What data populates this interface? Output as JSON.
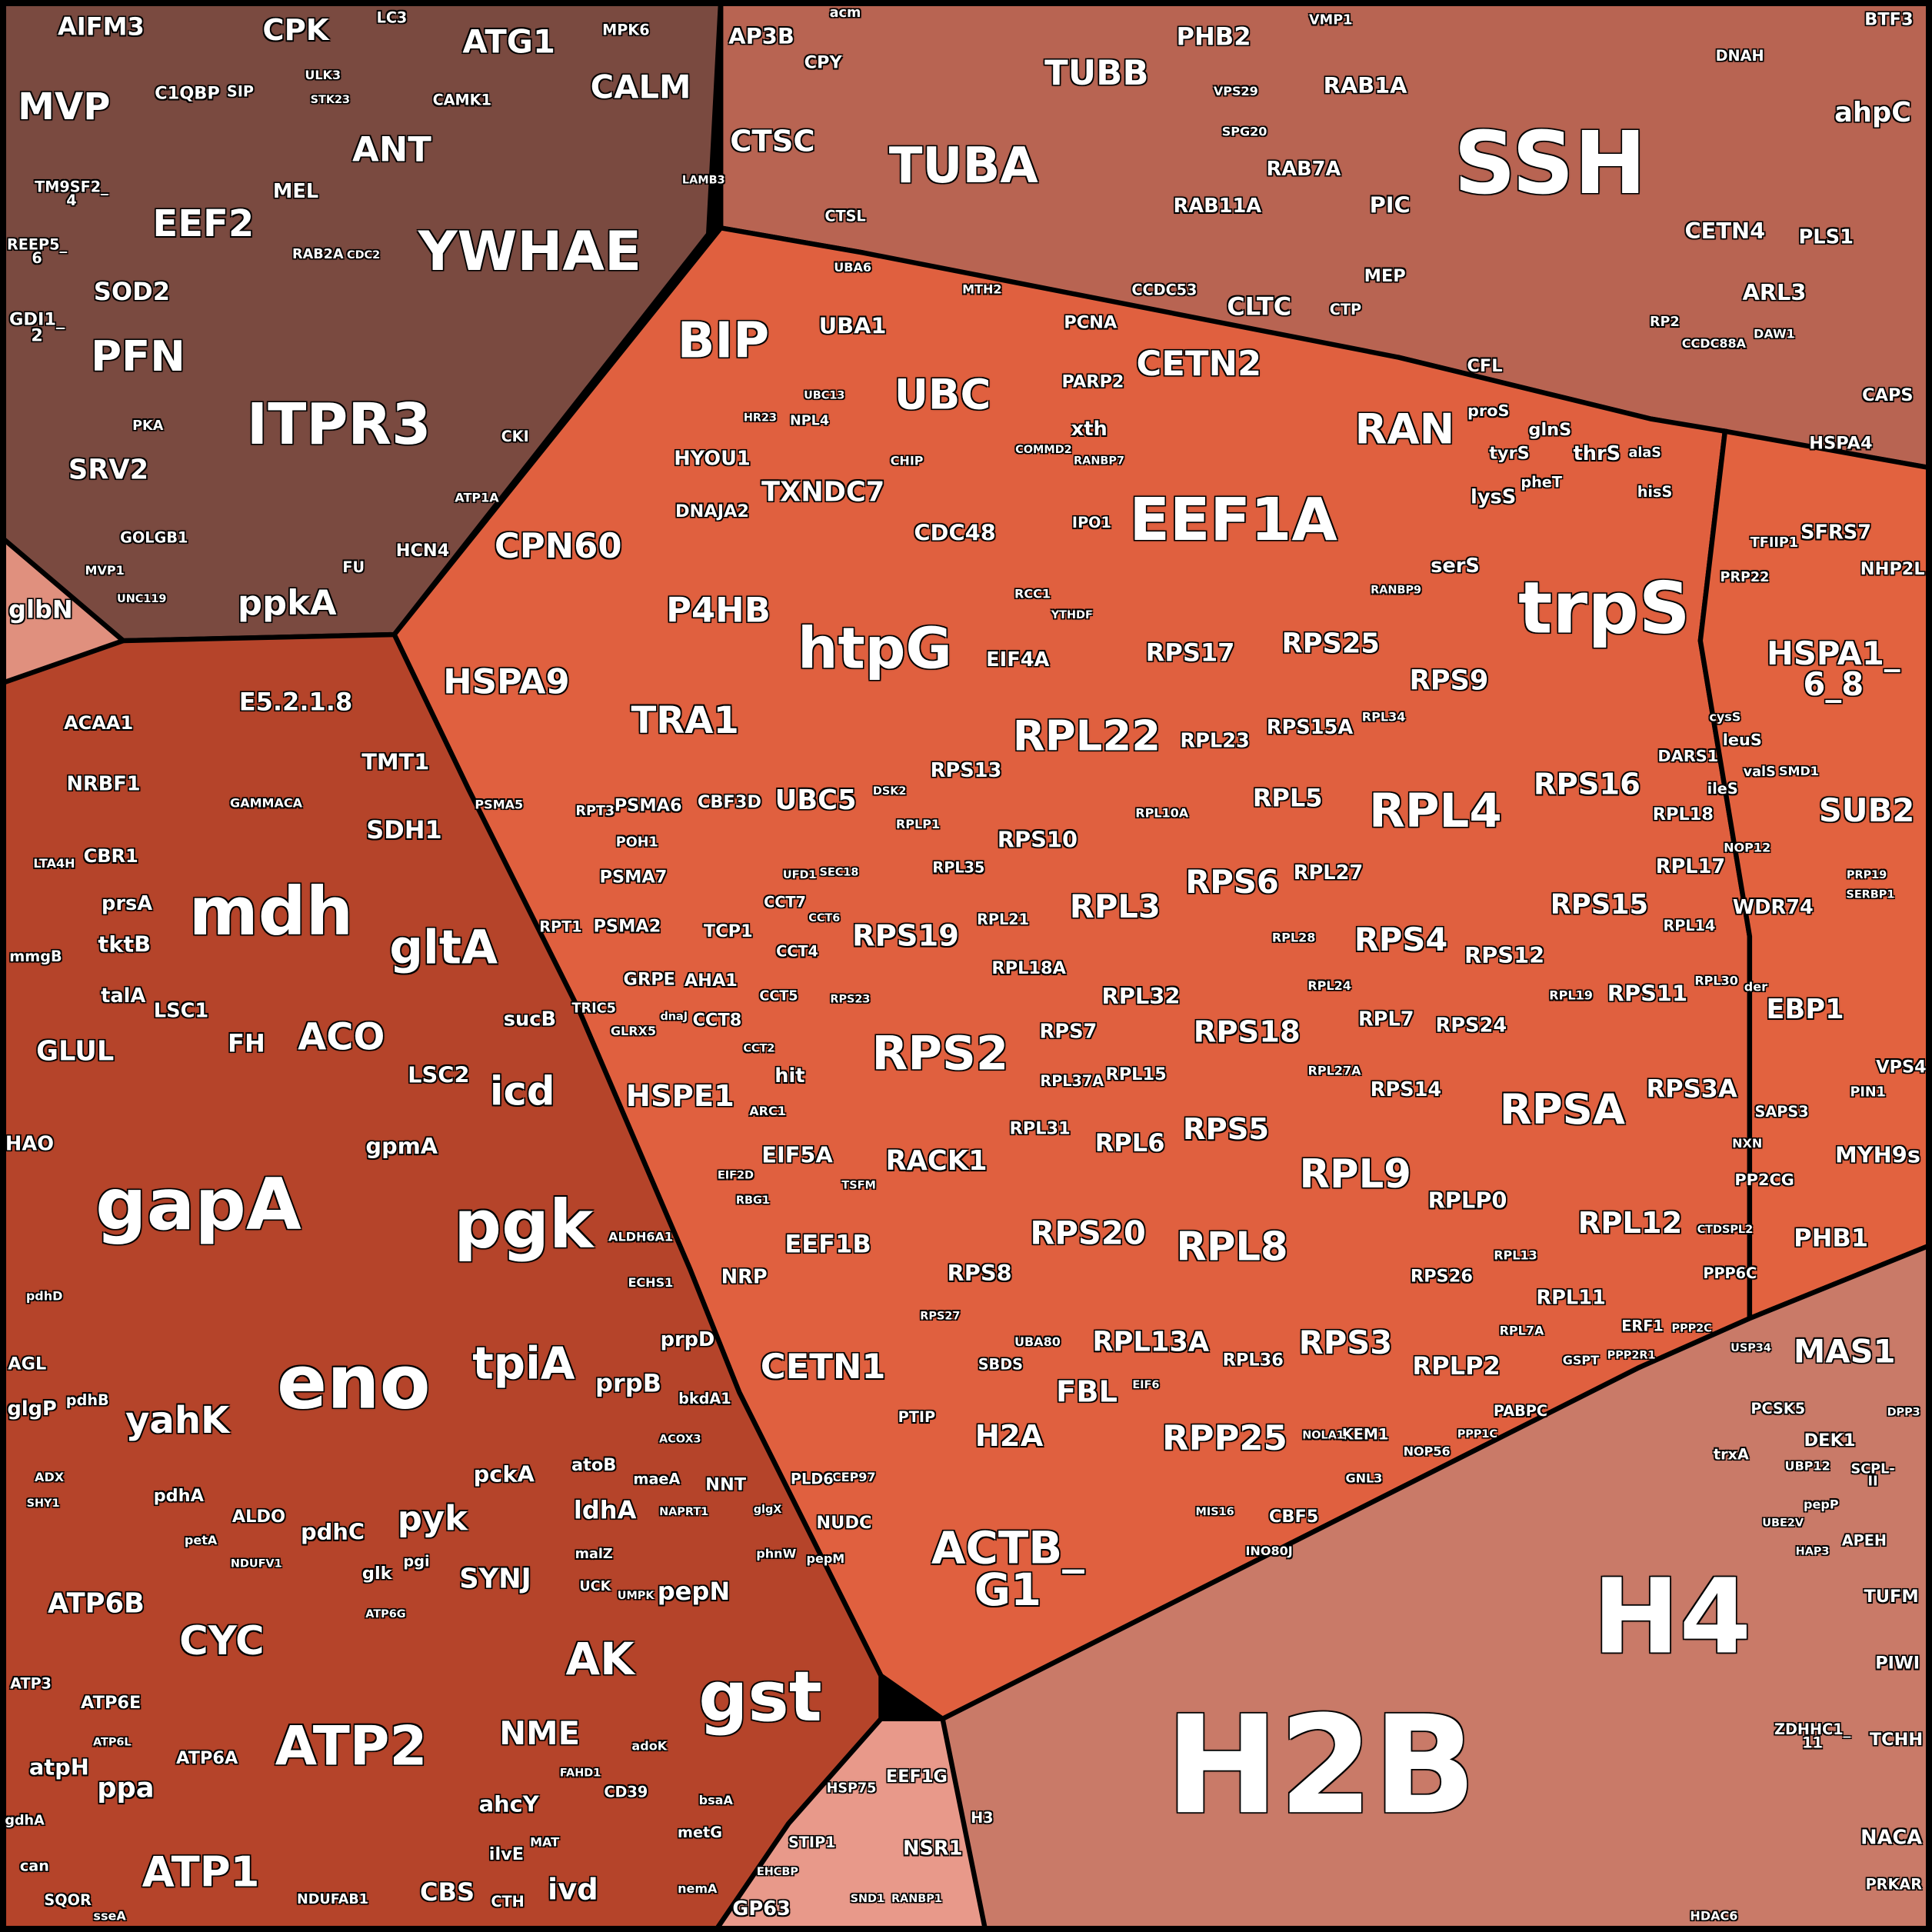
{
  "groups": [
    {
      "color": "#7a4a40",
      "labels": [
        "MVP",
        "AIFM3",
        "CPK",
        "ATG1",
        "CALM",
        "ANT",
        "YWHAE",
        "EEF2",
        "PFN",
        "ITPR3",
        "SRV2",
        "SOD2",
        "MEL",
        "C1QBP",
        "CAMK1",
        "ppkA",
        "HCN4",
        "GOLGB1",
        "CKI",
        "LC3",
        "MPK6",
        "TM9SF2_\n4",
        "REEP5_\n6",
        "GDI1_\n2",
        "SIP",
        "ULK3",
        "STK23",
        "RAB2A",
        "ATP1A",
        "FU",
        "PKA",
        "MVP1",
        "UNC119",
        "CDC2"
      ]
    },
    {
      "color": "#b86452",
      "labels": [
        "AP3B",
        "CPY",
        "CTSC",
        "TUBA",
        "TUBB",
        "PHB2",
        "RAB1A",
        "SSH",
        "BTF3",
        "ahpC",
        "DNAH",
        "CETN4",
        "PLS1",
        "ARL3",
        "RAB7A",
        "RAB11A",
        "PIC",
        "MEP",
        "CTP",
        "CLTC",
        "CCDC53",
        "CFL",
        "VMP1",
        "SPG20",
        "VPS29",
        "MTH2",
        "UBA6",
        "CTSL",
        "acm",
        "CAPS",
        "RP2",
        "HSPA4",
        "LAMB3",
        "CCDC88A",
        "DAW1"
      ]
    },
    {
      "color": "#e0603f",
      "labels": [
        "BIP",
        "UBA1",
        "UBC",
        "CETN2",
        "RAN",
        "EEF1A",
        "trpS",
        "CPN60",
        "HYOU1",
        "TXNDC7",
        "CDC48",
        "DNAJA2",
        "P4HB",
        "htpG",
        "HSPA9",
        "TRA1",
        "CBF3D",
        "UBC5",
        "RPS17",
        "RPS25",
        "RPS9",
        "RPL22",
        "RPL23",
        "RPS15A",
        "RPS16",
        "RPL4",
        "RPL5",
        "RPS13",
        "RPS10",
        "RPL3",
        "RPS6",
        "RPL27",
        "RPS19",
        "RPS4",
        "RPS15",
        "RPS12",
        "RPS2",
        "RPL18A",
        "RPL32",
        "RPS18",
        "RPL7",
        "RPS24",
        "RPS11",
        "RPSA",
        "RPS3A",
        "RPS14",
        "RPS7",
        "RPL37A",
        "RPL15",
        "RPL31",
        "RPL6",
        "RPS5",
        "RPL9",
        "RPLP0",
        "RPL12",
        "RACK1",
        "RPS20",
        "RPL8",
        "RPS8",
        "RPL13A",
        "RPS3",
        "RPLP2",
        "RPL36",
        "RPL11",
        "RPS26",
        "FBL",
        "RPP25",
        "H2A",
        "ACTB_\nG1",
        "CETN1",
        "NRP",
        "EEF1B",
        "EIF5A",
        "HSPE1",
        "hit",
        "ARC1",
        "GRPE",
        "AHA1",
        "CCT8",
        "TCP1",
        "CCT7",
        "CCT4",
        "CCT5",
        "PSMA6",
        "PSMA7",
        "PSMA2",
        "RPT1",
        "RPT3",
        "PSMA5",
        "POH1",
        "EIF4A",
        "PCNA",
        "PARP2",
        "xth",
        "IPO1",
        "RPL18",
        "RPL17",
        "RPL14",
        "RPL21",
        "RPL35",
        "RPL10A",
        "RPL24",
        "RPL28",
        "PTIP",
        "SBDS",
        "UBA80",
        "NUDC",
        "CEP97",
        "PLD6",
        "CBF5",
        "KEM1",
        "GNL3",
        "NOP56",
        "RPL13",
        "PABPC",
        "ERF1",
        "GSPT",
        "RPL7A",
        "RPL34",
        "RPL19",
        "RPL30",
        "RPL27A",
        "INO80J",
        "serS",
        "lysS",
        "tyrS",
        "thrS",
        "glnS",
        "proS",
        "pheT",
        "hisS",
        "alaS",
        "DARS1",
        "leuS",
        "ileS",
        "valS",
        "cysS",
        "RCC1",
        "YTHDF",
        "COMMD2",
        "CHIP",
        "NPL4",
        "UBC13",
        "HR23",
        "RANBP9",
        "RANBP7",
        "CCT6",
        "UFD1",
        "SEC18",
        "DSK2",
        "RPLP1",
        "RPS27",
        "RPS23",
        "TRIC5",
        "GLRX5",
        "dnaJ",
        "CCT2",
        "EIF2D",
        "RBG1",
        "TSFM",
        "EIF6",
        "NOLA1",
        "MIS16",
        "PPP1C",
        "PPP2R1"
      ]
    },
    {
      "color": "#e2623f",
      "labels": [
        "HSPA1_\n6_8",
        "SUB2",
        "SFRS7",
        "NHP2L",
        "TFIIP1",
        "PRP22",
        "WDR74",
        "EBP1",
        "VPS4",
        "SAPS3",
        "MYH9s",
        "PP2CG",
        "PHB1",
        "PPP6C",
        "NXN",
        "NOP12",
        "der",
        "SMD1",
        "PIN1",
        "SERBP1",
        "PRP19",
        "CTDSPL2",
        "PPP2C"
      ]
    },
    {
      "color": "#b5442a",
      "labels": [
        "E5.2.1.8",
        "TMT1",
        "GAMMACA",
        "ACAA1",
        "NRBF1",
        "CBR1",
        "LTA4H",
        "SDH1",
        "mdh",
        "gltA",
        "ACO",
        "LSC1",
        "FH",
        "sucB",
        "LSC2",
        "icd",
        "GLUL",
        "tktB",
        "talA",
        "prsA",
        "mmgB",
        "HAO",
        "gapA",
        "gpmA",
        "pgk",
        "eno",
        "tpiA",
        "yahK",
        "prpB",
        "prpD",
        "ALDH6A1",
        "ECHS1",
        "bkdA1",
        "atoB",
        "ldhA",
        "pckA",
        "pyk",
        "ALDO",
        "pdhC",
        "pdhA",
        "pdhB",
        "glgP",
        "AGL",
        "pdhD",
        "ADX",
        "SYNJ",
        "glk",
        "pgi",
        "maeA",
        "NNT",
        "glgX",
        "ACOX3",
        "NAPRT1",
        "malZ",
        "UCK",
        "UMPK",
        "pepN",
        "pepM",
        "phnW",
        "gst",
        "AK",
        "NME",
        "ATP6B",
        "CYC",
        "ATP2",
        "ATP6E",
        "ATP3",
        "ATP6A",
        "ATP6L",
        "atpH",
        "ppa",
        "gdhA",
        "ATP1",
        "can",
        "SQOR",
        "sseA",
        "NDUFAB1",
        "CBS",
        "CTH",
        "ivd",
        "ilvE",
        "ahcY",
        "MAT",
        "CD39",
        "adoK",
        "metG",
        "bsaA",
        "nemA",
        "FAHD1",
        "petA",
        "NDUFV1",
        "ATP6G",
        "SHY1"
      ]
    },
    {
      "color": "#e0907e",
      "labels": [
        "glbN"
      ]
    },
    {
      "color": "#c97a68",
      "labels": [
        "H2B",
        "H4",
        "MAS1",
        "PCSK5",
        "DEK1",
        "trxA",
        "UBP12",
        "SCPL-\nII",
        "APEH",
        "pepP",
        "HAP3",
        "TUFM",
        "PIWI",
        "ZDHHC1_\n11",
        "TCHH",
        "NACA",
        "PRKAR",
        "H3",
        "HDAC6",
        "USP34",
        "UBE2V",
        "DPP3"
      ]
    },
    {
      "color": "#e8998a",
      "labels": [
        "HSP75",
        "EEF1G",
        "STIP1",
        "NSR1",
        "GP63",
        "EHCBP",
        "RANBP1",
        "SND1"
      ]
    }
  ]
}
